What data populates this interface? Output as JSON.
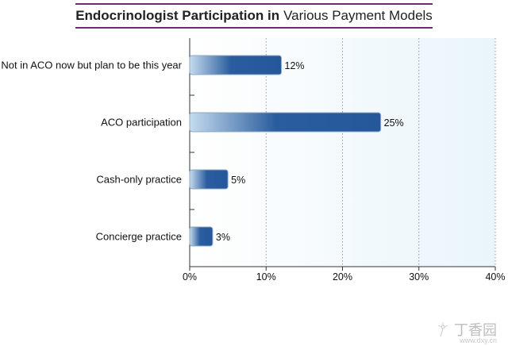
{
  "title": {
    "bold": "Endocrinologist Participation in",
    "rest": "Various Payment Models"
  },
  "chart_data": {
    "type": "bar",
    "orientation": "horizontal",
    "categories": [
      "Not in ACO now but plan to be this year",
      "ACO participation",
      "Cash-only practice",
      "Concierge practice"
    ],
    "values": [
      12,
      25,
      5,
      3
    ],
    "value_labels": [
      "12%",
      "25%",
      "5%",
      "3%"
    ],
    "xlim": [
      0,
      40
    ],
    "xticks": [
      0,
      10,
      20,
      30,
      40
    ],
    "xtick_labels": [
      "0%",
      "10%",
      "20%",
      "30%",
      "40%"
    ],
    "grid": "vertical dotted",
    "bar_color": "#2a5d9e",
    "plot_bg": "#eef7fc"
  },
  "watermark": {
    "text": "丁香园",
    "site": "www.dxy.cn",
    "icon": "dandelion-icon"
  }
}
